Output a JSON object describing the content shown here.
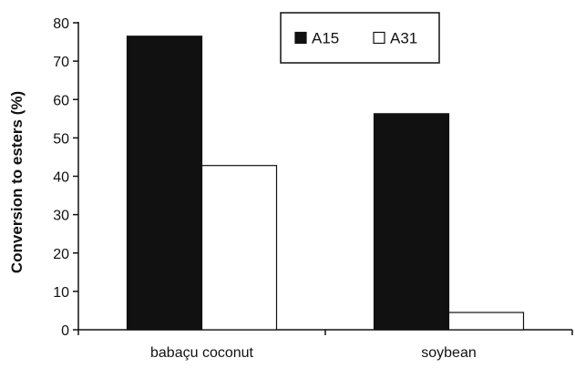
{
  "chart_data": {
    "type": "bar",
    "title": "",
    "xlabel": "",
    "ylabel": "Conversion to esters (%)",
    "categories": [
      "babaçu coconut",
      "soybean"
    ],
    "series": [
      {
        "name": "A15",
        "values": [
          76.5,
          56.3
        ],
        "color": "#111111"
      },
      {
        "name": "A31",
        "values": [
          42.8,
          4.5
        ],
        "color": "#ffffff"
      }
    ],
    "ylim": [
      0,
      80
    ],
    "yticks": [
      0,
      10,
      20,
      30,
      40,
      50,
      60,
      70,
      80
    ],
    "grid": false,
    "legend_position": "top-right"
  }
}
